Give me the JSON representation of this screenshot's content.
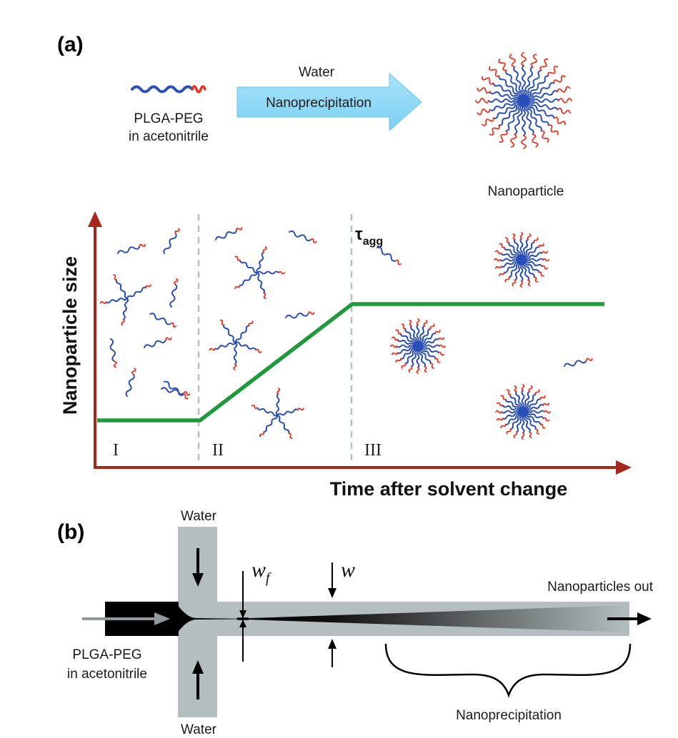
{
  "panel_a": {
    "label": "(a)",
    "polymer_label_line1": "PLGA-PEG",
    "polymer_label_line2": "in acetonitrile",
    "arrow_top_label": "Water",
    "arrow_inner_label": "Nanoprecipitation",
    "product_label": "Nanoparticle",
    "y_axis_label": "Nanoparticle size",
    "x_axis_label": "Time after solvent change",
    "tau_symbol": "τ",
    "tau_subscript": "agg",
    "stages": [
      "I",
      "II",
      "III"
    ],
    "colors": {
      "axis": "#a4281a",
      "size_curve": "#1e9a3c",
      "arrow_fill": "#8fd8f5",
      "polymer_core": "#2a4fb8",
      "polymer_tail": "#e8331f"
    }
  },
  "panel_b": {
    "label": "(b)",
    "water_top": "Water",
    "water_bottom": "Water",
    "wf_main": "w",
    "wf_sub": "f",
    "w_label": "w",
    "outlet_label": "Nanoparticles out",
    "inlet_line1": "PLGA-PEG",
    "inlet_line2": "in acetonitrile",
    "zone_label": "Nanoprecipitation"
  }
}
